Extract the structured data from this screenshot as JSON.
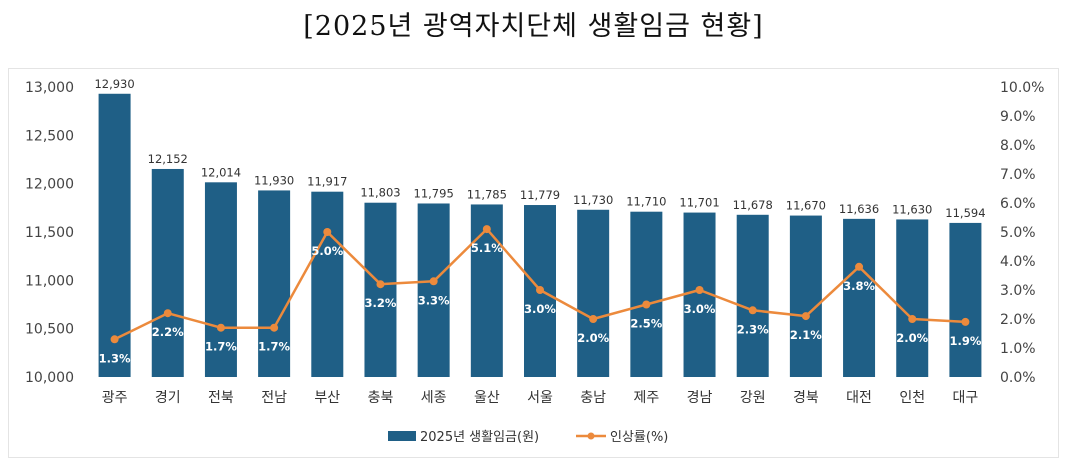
{
  "title": "[2025년 광역자치단체 생활임금 현황]",
  "colors": {
    "bar": "#1f5f86",
    "line": "#ec8a3c"
  },
  "chart_data": {
    "type": "bar",
    "categories": [
      "광주",
      "경기",
      "전북",
      "전남",
      "부산",
      "충북",
      "세종",
      "울산",
      "서울",
      "충남",
      "제주",
      "경남",
      "강원",
      "경북",
      "대전",
      "인천",
      "대구"
    ],
    "series": [
      {
        "name": "2025년 생활임금(원)",
        "type": "bar",
        "axis": "left",
        "values": [
          12930,
          12152,
          12014,
          11930,
          11917,
          11803,
          11795,
          11785,
          11779,
          11730,
          11710,
          11701,
          11678,
          11670,
          11636,
          11630,
          11594
        ],
        "labels": [
          "12,930",
          "12,152",
          "12,014",
          "11,930",
          "11,917",
          "11,803",
          "11,795",
          "11,785",
          "11,779",
          "11,730",
          "11,710",
          "11,701",
          "11,678",
          "11,670",
          "11,636",
          "11,630",
          "11,594"
        ]
      },
      {
        "name": "인상률(%)",
        "type": "line",
        "axis": "right",
        "values": [
          1.3,
          2.2,
          1.7,
          1.7,
          5.0,
          3.2,
          3.3,
          5.1,
          3.0,
          2.0,
          2.5,
          3.0,
          2.3,
          2.1,
          3.8,
          2.0,
          1.9
        ],
        "labels": [
          "1.3%",
          "2.2%",
          "1.7%",
          "1.7%",
          "5.0%",
          "3.2%",
          "3.3%",
          "5.1%",
          "3.0%",
          "2.0%",
          "2.5%",
          "3.0%",
          "2.3%",
          "2.1%",
          "3.8%",
          "2.0%",
          "1.9%"
        ]
      }
    ],
    "y_left": {
      "lim": [
        10000,
        13000
      ],
      "ticks": [
        10000,
        10500,
        11000,
        11500,
        12000,
        12500,
        13000
      ],
      "tick_labels": [
        "10,000",
        "10,500",
        "11,000",
        "11,500",
        "12,000",
        "12,500",
        "13,000"
      ]
    },
    "y_right": {
      "lim": [
        0,
        10
      ],
      "ticks": [
        0,
        1,
        2,
        3,
        4,
        5,
        6,
        7,
        8,
        9,
        10
      ],
      "tick_labels": [
        "0.0%",
        "1.0%",
        "2.0%",
        "3.0%",
        "4.0%",
        "5.0%",
        "6.0%",
        "7.0%",
        "8.0%",
        "9.0%",
        "10.0%"
      ]
    },
    "grid": false,
    "legend": "bottom"
  }
}
